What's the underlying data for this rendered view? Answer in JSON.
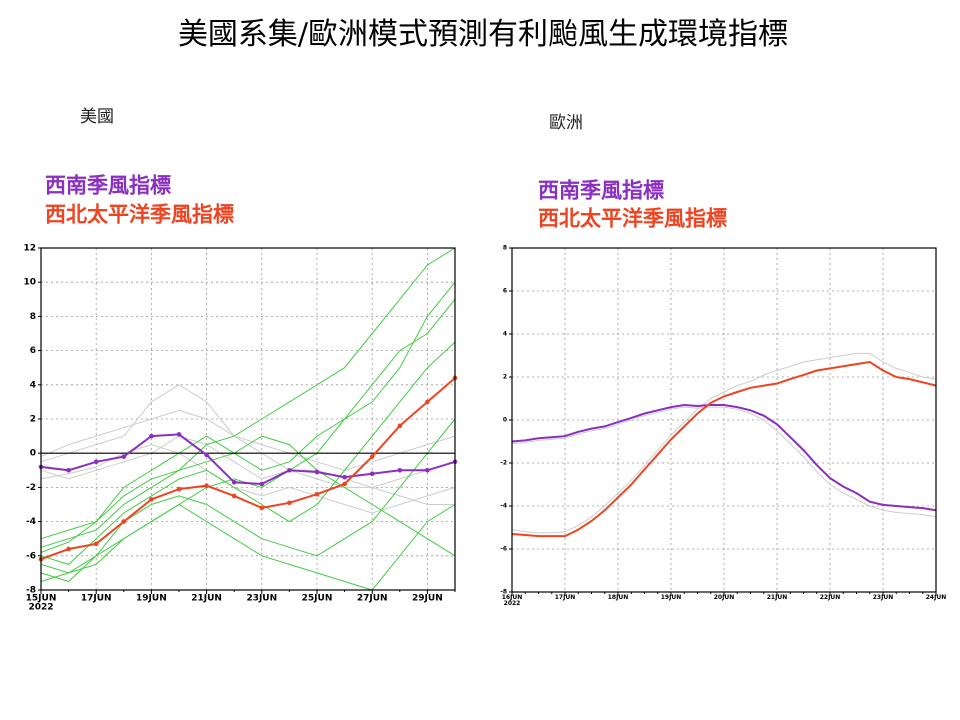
{
  "title": "美國系集/歐洲模式預測有利颱風生成環境指標",
  "chart_data": [
    {
      "type": "line",
      "title": "美國",
      "x_year_label": "2022",
      "categories": [
        "15JUN",
        null,
        "17JUN",
        null,
        "19JUN",
        null,
        "21JUN",
        null,
        "23JUN",
        null,
        "25JUN",
        null,
        "27JUN",
        null,
        "29JUN",
        null
      ],
      "ylim": [
        -8,
        12
      ],
      "yticks": [
        -8,
        -6,
        -4,
        -2,
        0,
        2,
        4,
        6,
        8,
        10,
        12
      ],
      "grid": true,
      "zero_line": true,
      "markers": true,
      "series": [
        {
          "name": "西南季風指標",
          "color": "#8a2fc0",
          "values": [
            -0.8,
            -1.0,
            -0.5,
            -0.2,
            1.0,
            1.1,
            -0.1,
            -1.7,
            -1.8,
            -1.0,
            -1.1,
            -1.4,
            -1.2,
            -1.0,
            -1.0,
            -0.5
          ]
        },
        {
          "name": "西北太平洋季風指標",
          "color": "#ee4422",
          "values": [
            -6.2,
            -5.6,
            -5.3,
            -4.0,
            -2.7,
            -2.1,
            -1.9,
            -2.5,
            -3.2,
            -2.9,
            -2.4,
            -1.8,
            -0.2,
            1.6,
            3.0,
            4.4
          ]
        }
      ],
      "members": [
        {
          "color": "#44cc44",
          "values": [
            -5.5,
            -5,
            -4.5,
            -3,
            -2,
            -1,
            0.5,
            1,
            2,
            3,
            4,
            5,
            7,
            9,
            11,
            12
          ]
        },
        {
          "color": "#44cc44",
          "values": [
            -6,
            -6.5,
            -5,
            -3.5,
            -2.5,
            -1.5,
            -1,
            -2,
            -3,
            -4,
            -3,
            -1,
            1,
            3,
            5,
            6.5
          ]
        },
        {
          "color": "#44cc44",
          "values": [
            -7,
            -7.5,
            -6,
            -4,
            -3,
            -2.5,
            -3,
            -4,
            -5,
            -5.5,
            -6,
            -5,
            -4,
            -2,
            0,
            2
          ]
        },
        {
          "color": "#44cc44",
          "values": [
            -5.8,
            -5.2,
            -4,
            -2,
            -1,
            0,
            1,
            0,
            -1,
            -0.5,
            1,
            2,
            4,
            6,
            7,
            9
          ]
        },
        {
          "color": "#44cc44",
          "values": [
            -6.5,
            -7,
            -6.5,
            -5,
            -4,
            -3,
            -4,
            -5,
            -6,
            -6.5,
            -7,
            -7.5,
            -8,
            -6,
            -4,
            -3
          ]
        },
        {
          "color": "#44cc44",
          "values": [
            -5,
            -4.5,
            -4,
            -2.5,
            -1.5,
            -1,
            -0.5,
            0,
            1,
            0.5,
            -1,
            -2,
            -3,
            -4,
            -5,
            -6
          ]
        },
        {
          "color": "#44cc44",
          "values": [
            -7.5,
            -7,
            -6,
            -5,
            -4,
            -3,
            -2,
            -1.5,
            -2,
            -1,
            0,
            2,
            3,
            5,
            8,
            10
          ]
        },
        {
          "color": "#cccccc",
          "values": [
            -0.5,
            0,
            0.5,
            1,
            3,
            4,
            3,
            1,
            0,
            -1,
            -1.5,
            -2,
            -2,
            -2.5,
            -3,
            -3
          ]
        },
        {
          "color": "#cccccc",
          "values": [
            -1,
            -1.5,
            -1,
            -0.5,
            0,
            1,
            0.5,
            -0.5,
            -1.5,
            -1,
            -1,
            -1.5,
            -2,
            -1.5,
            -1,
            -0.5
          ]
        },
        {
          "color": "#cccccc",
          "values": [
            -0.2,
            0.5,
            1,
            1.5,
            2,
            2.5,
            2,
            1,
            0.5,
            0,
            -0.5,
            -1,
            -0.5,
            0,
            0.5,
            1
          ]
        },
        {
          "color": "#cccccc",
          "values": [
            -1.5,
            -1.2,
            -0.8,
            0,
            0.5,
            0,
            -1,
            -2,
            -2.5,
            -2,
            -2.5,
            -3,
            -3.5,
            -3,
            -2.5,
            -2
          ]
        }
      ]
    },
    {
      "type": "line",
      "title": "歐洲",
      "x_year_label": "2022",
      "categories": [
        "16JUN",
        null,
        null,
        null,
        "17JUN",
        null,
        null,
        null,
        "18JUN",
        null,
        null,
        null,
        "19JUN",
        null,
        null,
        null,
        "20JUN",
        null,
        null,
        null,
        "21JUN",
        null,
        null,
        null,
        "22JUN",
        null,
        null,
        null,
        "23JUN",
        null,
        null,
        null,
        "24JUN"
      ],
      "ylim": [
        -8,
        8
      ],
      "yticks": [
        -8,
        -6,
        -4,
        -2,
        0,
        2,
        4,
        6,
        8
      ],
      "grid": true,
      "zero_line": false,
      "markers": false,
      "series": [
        {
          "name": "西南季風指標",
          "color": "#8a2fc0",
          "values": [
            -1.0,
            -0.95,
            -0.85,
            -0.8,
            -0.75,
            -0.55,
            -0.4,
            -0.3,
            -0.1,
            0.1,
            0.3,
            0.45,
            0.6,
            0.7,
            0.65,
            0.7,
            0.7,
            0.6,
            0.45,
            0.2,
            -0.2,
            -0.8,
            -1.4,
            -2.1,
            -2.7,
            -3.1,
            -3.4,
            -3.8,
            -3.95,
            -4.0,
            -4.05,
            -4.1,
            -4.2
          ]
        },
        {
          "name": "西北太平洋季風指標",
          "color": "#ee4422",
          "values": [
            -5.3,
            -5.35,
            -5.4,
            -5.4,
            -5.4,
            -5.1,
            -4.7,
            -4.2,
            -3.6,
            -3.0,
            -2.3,
            -1.6,
            -0.9,
            -0.3,
            0.3,
            0.8,
            1.1,
            1.3,
            1.5,
            1.6,
            1.7,
            1.9,
            2.1,
            2.3,
            2.4,
            2.5,
            2.6,
            2.7,
            2.3,
            2.0,
            1.9,
            1.75,
            1.6
          ]
        }
      ],
      "members": [
        {
          "color": "#cccccc",
          "values": [
            -5.1,
            -5.2,
            -5.25,
            -5.25,
            -5.2,
            -4.9,
            -4.5,
            -4.0,
            -3.4,
            -2.8,
            -2.1,
            -1.4,
            -0.7,
            -0.1,
            0.5,
            1.0,
            1.3,
            1.6,
            1.8,
            2.1,
            2.3,
            2.5,
            2.7,
            2.8,
            2.9,
            3.0,
            3.1,
            3.1,
            2.7,
            2.4,
            2.2,
            2.0,
            1.9
          ]
        },
        {
          "color": "#cccccc",
          "values": [
            -1.1,
            -1.05,
            -0.95,
            -0.9,
            -0.85,
            -0.65,
            -0.5,
            -0.4,
            -0.2,
            0.0,
            0.2,
            0.35,
            0.5,
            0.6,
            0.55,
            0.6,
            0.6,
            0.5,
            0.3,
            0.0,
            -0.5,
            -1.1,
            -1.7,
            -2.4,
            -3.0,
            -3.4,
            -3.7,
            -4.0,
            -4.2,
            -4.3,
            -4.35,
            -4.4,
            -4.5
          ]
        }
      ]
    }
  ]
}
